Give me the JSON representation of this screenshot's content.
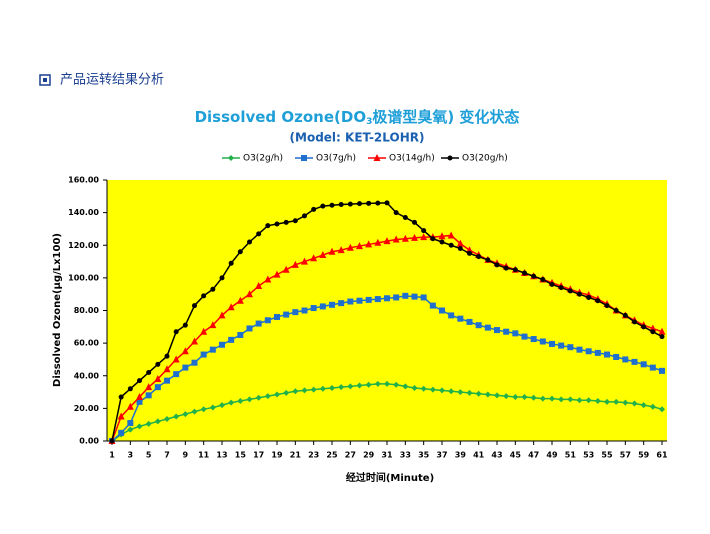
{
  "heading": "产品运转结果分析",
  "chart_data": {
    "type": "line",
    "title": [
      "Dissolved Ozone(DO",
      "3",
      "极谱型臭氧) 变化状态"
    ],
    "subtitle": "(Model: KET-2LOHR)",
    "x_label": "经过时间(Minute)",
    "y_label": "Dissolved Ozone(µg/Lx100)",
    "x": [
      1,
      2,
      3,
      4,
      5,
      6,
      7,
      8,
      9,
      10,
      11,
      12,
      13,
      14,
      15,
      16,
      17,
      18,
      19,
      20,
      21,
      22,
      23,
      24,
      25,
      26,
      27,
      28,
      29,
      30,
      31,
      32,
      33,
      34,
      35,
      36,
      37,
      38,
      39,
      40,
      41,
      42,
      43,
      44,
      45,
      46,
      47,
      48,
      49,
      50,
      51,
      52,
      53,
      54,
      55,
      56,
      57,
      58,
      59,
      60,
      61
    ],
    "xlim": [
      1,
      61
    ],
    "xticks": [
      1,
      3,
      5,
      7,
      9,
      11,
      13,
      15,
      17,
      19,
      21,
      23,
      25,
      27,
      29,
      31,
      33,
      35,
      37,
      39,
      41,
      43,
      45,
      47,
      49,
      51,
      53,
      55,
      57,
      59,
      61
    ],
    "ylim": [
      0,
      160
    ],
    "yticks": [
      {
        "value": 0,
        "label": "0.00"
      },
      {
        "value": 20,
        "label": "20.00"
      },
      {
        "value": 40,
        "label": "40.00"
      },
      {
        "value": 60,
        "label": "60.00"
      },
      {
        "value": 80,
        "label": "80.00"
      },
      {
        "value": 100,
        "label": "100.00"
      },
      {
        "value": 120,
        "label": "120.00"
      },
      {
        "value": 140,
        "label": "140.00"
      },
      {
        "value": 160,
        "label": "160.00"
      }
    ],
    "background": "#ffff00",
    "legend": "top",
    "series": [
      {
        "name": "O3(2g/h)",
        "color": "#22b04a",
        "marker": "diamond",
        "values": [
          0,
          4,
          7,
          9,
          10.5,
          12,
          13.5,
          15,
          16.5,
          18,
          19.5,
          20.5,
          22,
          23.5,
          24.5,
          25.5,
          26.5,
          27.5,
          28.5,
          29.5,
          30.5,
          31,
          31.5,
          32,
          32.5,
          33,
          33.5,
          34,
          34.5,
          35,
          35,
          34.5,
          33.5,
          32.5,
          32,
          31.5,
          31,
          30.5,
          30,
          29.5,
          29,
          28.5,
          28,
          27.5,
          27,
          27,
          26.5,
          26,
          26,
          25.5,
          25.5,
          25,
          25,
          24.5,
          24,
          24,
          23.5,
          23,
          22,
          21,
          19.5
        ]
      },
      {
        "name": "O3(7g/h)",
        "color": "#1f6fcf",
        "marker": "square",
        "values": [
          0,
          5,
          11,
          24,
          28,
          33,
          37,
          41,
          45,
          48,
          53,
          56,
          59,
          62,
          65,
          69,
          72,
          74,
          76,
          77.5,
          79,
          80,
          81.5,
          82.5,
          83.5,
          84.5,
          85.5,
          86,
          86.5,
          87,
          87.5,
          88,
          89,
          88.5,
          88,
          83,
          80,
          77,
          75,
          73,
          71,
          69.5,
          68,
          67,
          66,
          64,
          62.5,
          61,
          59.5,
          58.5,
          57.5,
          56,
          55,
          54,
          53,
          51.5,
          50,
          48.5,
          47,
          45,
          43
        ]
      },
      {
        "name": "O3(14g/h)",
        "color": "#ff0000",
        "marker": "triangle",
        "values": [
          0,
          15,
          21,
          27,
          33,
          38,
          44,
          50,
          55,
          61,
          67,
          71,
          77,
          82,
          86,
          90,
          95,
          99,
          102,
          105,
          108,
          110,
          112,
          114,
          116,
          117,
          118.5,
          119.5,
          120.5,
          121.5,
          122.5,
          123.5,
          124,
          124.5,
          125,
          125,
          125.5,
          126,
          121,
          117,
          114,
          111,
          109,
          107,
          105,
          103,
          101,
          99,
          97,
          95,
          93,
          91,
          89.5,
          87,
          84,
          80,
          77,
          74,
          71,
          69,
          67
        ]
      },
      {
        "name": "O3(20g/h)",
        "color": "#000000",
        "marker": "circle",
        "values": [
          0,
          27,
          32,
          37,
          42,
          47,
          52,
          67,
          71,
          83,
          89,
          93,
          100,
          109,
          116,
          122,
          127,
          132,
          133,
          134,
          135,
          138,
          142,
          144,
          144.5,
          145,
          145.2,
          145.5,
          145.7,
          145.8,
          146,
          140,
          137,
          134,
          129,
          124,
          122,
          120,
          118,
          115,
          113,
          111,
          108,
          106,
          105,
          103,
          101,
          99,
          96,
          94,
          92,
          90,
          88,
          86,
          83,
          80,
          77,
          73,
          70,
          67,
          64
        ]
      }
    ]
  }
}
